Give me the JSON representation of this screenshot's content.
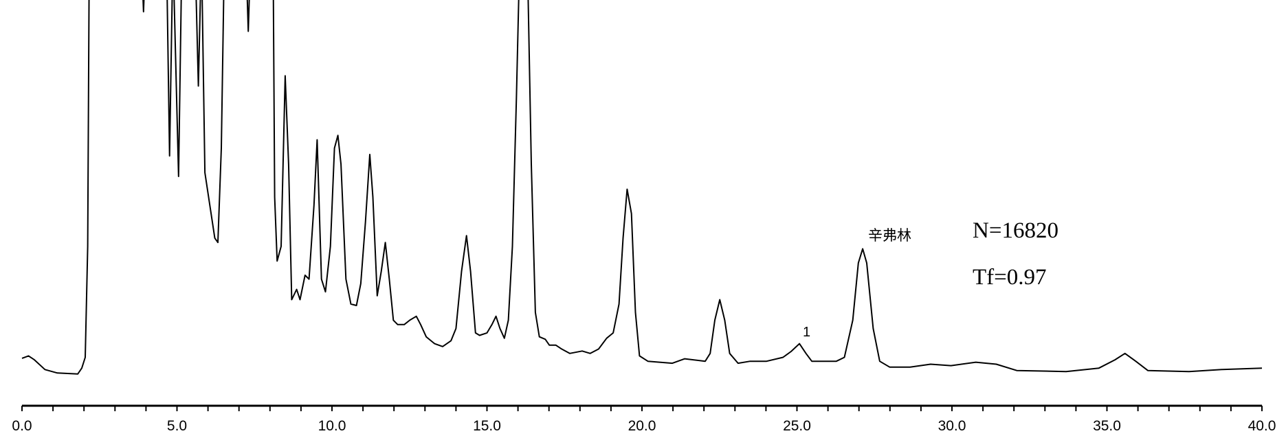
{
  "chart_data": {
    "type": "line",
    "title": "",
    "xlabel": "",
    "ylabel": "",
    "xlim": [
      0,
      40
    ],
    "ylim": [
      17,
      100
    ],
    "grid": false,
    "x_ticks_major": [
      0,
      5,
      10,
      15,
      20,
      25,
      30,
      35,
      40
    ],
    "x_tick_labels": [
      "0.0",
      "5.0",
      "10.0",
      "15.0",
      "20.0",
      "25.0",
      "30.0",
      "35.0",
      "40.0"
    ],
    "x_minor_tick_step": 1,
    "line_color": "#000000",
    "series": [
      {
        "x": [
          0.0,
          0.21,
          0.4,
          0.74,
          1.14,
          1.8,
          1.93,
          2.04,
          2.12,
          2.17,
          3.85,
          3.92,
          3.99,
          4.66,
          4.76,
          4.87,
          5.05,
          5.16,
          5.58,
          5.69,
          5.79,
          5.9,
          6.06,
          6.22,
          6.32,
          6.43,
          6.53,
          7.22,
          7.3,
          7.38,
          8.1,
          8.15,
          8.23,
          8.36,
          8.49,
          8.6,
          8.7,
          8.86,
          8.97,
          9.13,
          9.26,
          9.42,
          9.52,
          9.66,
          9.79,
          9.95,
          10.08,
          10.19,
          10.29,
          10.45,
          10.61,
          10.79,
          10.93,
          11.08,
          11.22,
          11.32,
          11.46,
          11.59,
          11.72,
          11.85,
          11.98,
          12.12,
          12.33,
          12.51,
          12.72,
          12.86,
          13.04,
          13.31,
          13.57,
          13.84,
          14.0,
          14.18,
          14.34,
          14.47,
          14.63,
          14.76,
          15.0,
          15.16,
          15.29,
          15.42,
          15.56,
          15.69,
          15.82,
          15.95,
          16.06,
          16.3,
          16.43,
          16.56,
          16.69,
          16.88,
          17.01,
          17.22,
          17.41,
          17.67,
          18.07,
          18.33,
          18.6,
          18.86,
          19.07,
          19.26,
          19.39,
          19.52,
          19.66,
          19.79,
          19.92,
          20.19,
          20.98,
          21.38,
          22.04,
          22.2,
          22.35,
          22.51,
          22.67,
          22.83,
          23.1,
          23.49,
          24.02,
          24.55,
          24.81,
          25.08,
          25.29,
          25.48,
          26.27,
          26.53,
          26.8,
          26.98,
          27.12,
          27.25,
          27.46,
          27.67,
          27.99,
          28.65,
          29.31,
          29.97,
          30.77,
          31.43,
          32.09,
          33.68,
          34.74,
          35.26,
          35.58,
          35.93,
          36.32,
          37.65,
          38.7,
          40.0
        ],
        "y": [
          26.7,
          27.2,
          26.4,
          24.4,
          23.7,
          23.5,
          24.7,
          26.9,
          49.6,
          110,
          110,
          97.6,
          110,
          110,
          68.1,
          110,
          63.9,
          110,
          110,
          82.4,
          110,
          64.7,
          58.0,
          51.3,
          50.4,
          69.7,
          110,
          110,
          93.6,
          110,
          110,
          59.7,
          46.6,
          49.6,
          84.5,
          66.4,
          38.7,
          40.8,
          38.7,
          43.7,
          42.9,
          58.0,
          71.4,
          42.9,
          40.3,
          49.6,
          69.7,
          72.3,
          66.4,
          42.9,
          37.8,
          37.5,
          42.0,
          54.6,
          68.4,
          59.7,
          39.5,
          44.5,
          50.4,
          42.9,
          34.5,
          33.6,
          33.6,
          34.5,
          35.3,
          33.6,
          31.1,
          29.7,
          29.1,
          30.3,
          32.8,
          44.5,
          51.8,
          44.5,
          31.9,
          31.4,
          31.9,
          33.6,
          35.3,
          32.8,
          30.8,
          34.5,
          49.6,
          79.8,
          110,
          110,
          66.4,
          36.1,
          31.1,
          30.6,
          29.4,
          29.4,
          28.6,
          27.7,
          28.2,
          27.7,
          28.6,
          30.8,
          31.9,
          37.8,
          51.3,
          61.3,
          56.3,
          36.1,
          27.2,
          26.1,
          25.7,
          26.6,
          26.1,
          27.7,
          34.5,
          38.7,
          34.5,
          27.7,
          25.7,
          26.1,
          26.1,
          26.9,
          28.1,
          29.7,
          27.7,
          26.1,
          26.1,
          26.9,
          34.5,
          46.2,
          49.1,
          46.2,
          32.8,
          26.1,
          24.9,
          24.9,
          25.5,
          25.2,
          25.9,
          25.5,
          24.2,
          24.0,
          24.7,
          26.4,
          27.7,
          26.1,
          24.2,
          24.0,
          24.4,
          24.7
        ]
      }
    ],
    "annotations": {
      "peak_1": {
        "text": "1",
        "x": 25.1
      },
      "synephrine": {
        "text": "辛弗林",
        "x": 27.1
      },
      "plate_number": {
        "text": "N=16820"
      },
      "tailing_factor": {
        "text": "Tf=0.97"
      }
    }
  }
}
